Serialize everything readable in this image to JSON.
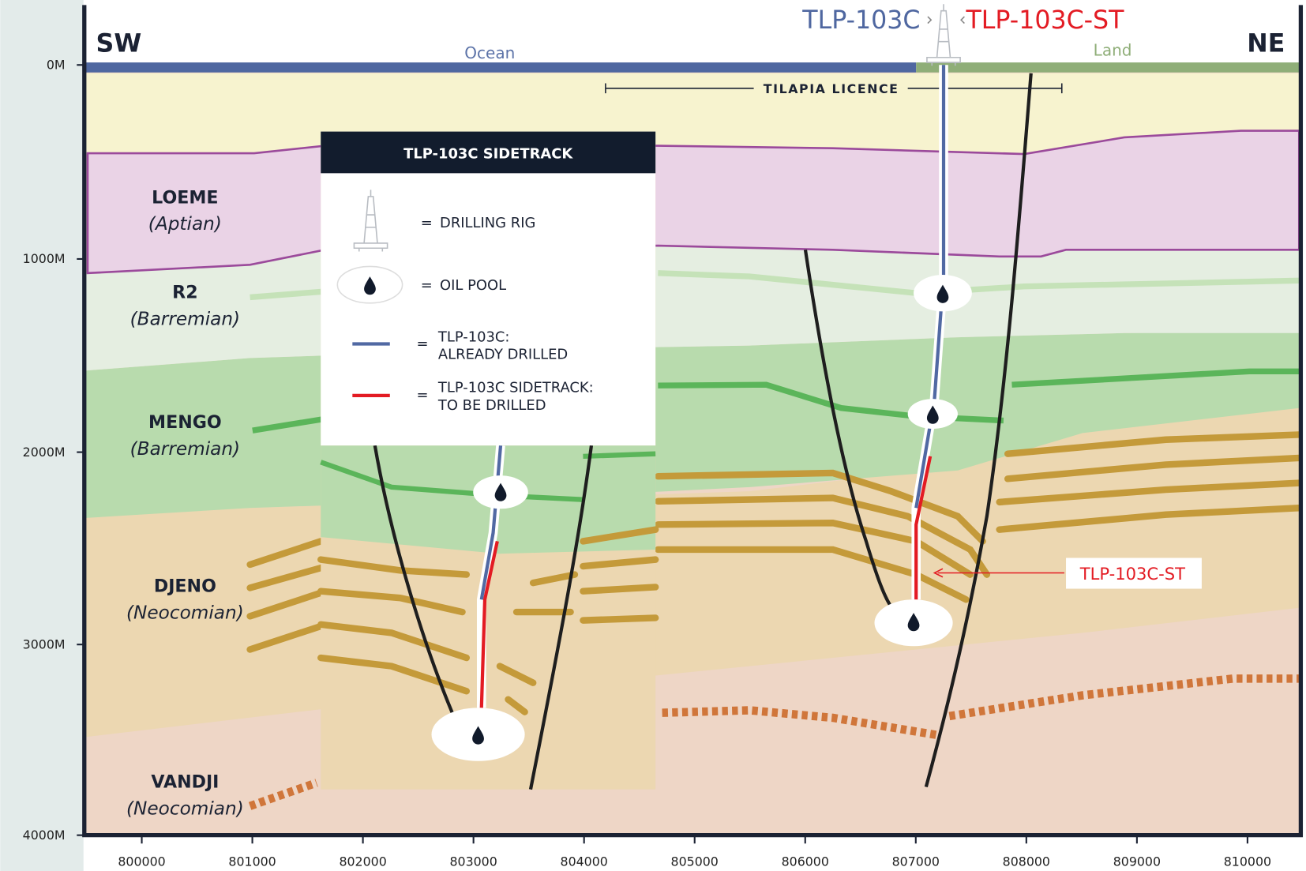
{
  "header": {
    "left": "SW",
    "right": "NE",
    "well": "TLP-103C",
    "sidetrack": "TLP-103C-ST"
  },
  "surface": {
    "ocean": "Ocean",
    "land": "Land"
  },
  "licence": "TILAPIA LICENCE",
  "depth_axis": [
    "0M",
    "1000M",
    "2000M",
    "3000M",
    "4000M"
  ],
  "x_axis": [
    "800000",
    "801000",
    "802000",
    "803000",
    "804000",
    "805000",
    "806000",
    "807000",
    "808000",
    "809000",
    "810000"
  ],
  "formations": [
    {
      "name": "LOEME",
      "age": "(Aptian)"
    },
    {
      "name": "R2",
      "age": "(Barremian)"
    },
    {
      "name": "MENGO",
      "age": "(Barremian)"
    },
    {
      "name": "DJENO",
      "age": "(Neocomian)"
    },
    {
      "name": "VANDJI",
      "age": "(Neocomian)"
    }
  ],
  "legend": {
    "title": "TLP-103C SIDETRACK",
    "separator": "=",
    "items": [
      {
        "lines": [
          "DRILLING RIG"
        ]
      },
      {
        "lines": [
          "OIL POOL"
        ]
      },
      {
        "lines": [
          "TLP-103C:",
          "ALREADY DRILLED"
        ]
      },
      {
        "lines": [
          "TLP-103C SIDETRACK:",
          "TO BE DRILLED"
        ]
      }
    ]
  },
  "callout": "TLP-103C-ST"
}
